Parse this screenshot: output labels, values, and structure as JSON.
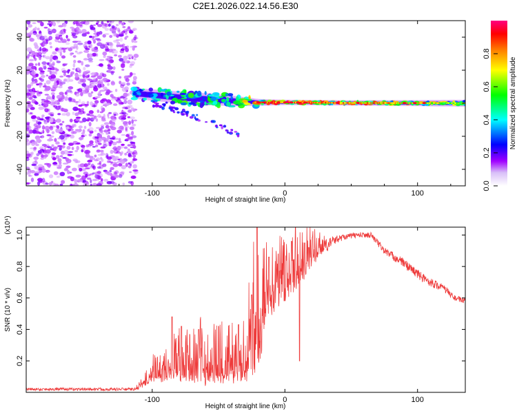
{
  "title": "C2E1.2026.022.14.56.E30",
  "chart_data": [
    {
      "type": "heatmap",
      "name": "spectrogram",
      "xlabel": "Height of straight line (km)",
      "ylabel": "Frequency (Hz)",
      "xlim": [
        -195,
        136
      ],
      "ylim": [
        -50,
        50
      ],
      "xticks": [
        -100,
        0,
        100
      ],
      "yticks": [
        -40,
        -20,
        0,
        20,
        40
      ],
      "colorbar": {
        "label": "Normalized spectral amplitude",
        "range": [
          0,
          1
        ],
        "ticks": [
          "0.0",
          "0.2",
          "0.4",
          "0.6",
          "0.8"
        ],
        "tick_values": [
          0.0,
          0.2,
          0.4,
          0.6,
          0.8
        ],
        "colors": [
          "#f2ecfb",
          "#a000ff",
          "#0000ff",
          "#00ffff",
          "#00ff00",
          "#ffff00",
          "#ff8000",
          "#ff0000",
          "#ff00a0"
        ]
      },
      "regions": {
        "noise_x": [
          -195,
          -112
        ],
        "noise_freq": [
          -50,
          50
        ],
        "trend": [
          {
            "x": -115,
            "freq": 6.0,
            "width": 6.0,
            "amp": 0.35
          },
          {
            "x": -100,
            "freq": 5.0,
            "width": 6.5,
            "amp": 0.4
          },
          {
            "x": -80,
            "freq": 3.5,
            "width": 7.0,
            "amp": 0.45
          },
          {
            "x": -60,
            "freq": 2.5,
            "width": 7.0,
            "amp": 0.45
          },
          {
            "x": -40,
            "freq": 1.5,
            "width": 6.0,
            "amp": 0.5
          },
          {
            "x": -20,
            "freq": 0.5,
            "width": 4.0,
            "amp": 0.7
          },
          {
            "x": 0,
            "freq": 0.5,
            "width": 3.0,
            "amp": 0.8
          },
          {
            "x": 50,
            "freq": 0.2,
            "width": 3.0,
            "amp": 0.75
          },
          {
            "x": 100,
            "freq": 0.1,
            "width": 3.5,
            "amp": 0.65
          },
          {
            "x": 136,
            "freq": 0.0,
            "width": 4.0,
            "amp": 0.55
          }
        ],
        "branch": [
          {
            "x": -100,
            "freq": 0
          },
          {
            "x": -75,
            "freq": -6
          },
          {
            "x": -55,
            "freq": -12
          },
          {
            "x": -35,
            "freq": -19
          }
        ]
      }
    },
    {
      "type": "line",
      "name": "snr",
      "xlabel": "Height of straight line (km)",
      "ylabel": "SNR (10 * v/v)",
      "yexponent": "(x10⁴)",
      "xlim": [
        -195,
        136
      ],
      "ylim": [
        0,
        1.05
      ],
      "xticks": [
        -100,
        0,
        100
      ],
      "yticks": [
        0.2,
        0.4,
        0.6,
        0.8,
        1.0
      ],
      "ytick_labels": [
        "0.2",
        "0.4",
        "0.6",
        "0.8",
        "1.0"
      ],
      "color": "#ee3b3b",
      "envelope": [
        {
          "x": -195,
          "base": 0.02,
          "amp": 0.02
        },
        {
          "x": -112,
          "base": 0.02,
          "amp": 0.02
        },
        {
          "x": -105,
          "base": 0.05,
          "amp": 0.05
        },
        {
          "x": -100,
          "base": 0.1,
          "amp": 0.1
        },
        {
          "x": -90,
          "base": 0.1,
          "amp": 0.12
        },
        {
          "x": -80,
          "base": 0.14,
          "amp": 0.22
        },
        {
          "x": -70,
          "base": 0.12,
          "amp": 0.22
        },
        {
          "x": -60,
          "base": 0.12,
          "amp": 0.24
        },
        {
          "x": -50,
          "base": 0.12,
          "amp": 0.24
        },
        {
          "x": -40,
          "base": 0.12,
          "amp": 0.22
        },
        {
          "x": -30,
          "base": 0.14,
          "amp": 0.25
        },
        {
          "x": -22,
          "base": 0.3,
          "amp": 0.5
        },
        {
          "x": -18,
          "base": 0.3,
          "amp": 0.55
        },
        {
          "x": -15,
          "base": 0.55,
          "amp": 0.3
        },
        {
          "x": -5,
          "base": 0.62,
          "amp": 0.25
        },
        {
          "x": 5,
          "base": 0.7,
          "amp": 0.25
        },
        {
          "x": 15,
          "base": 0.78,
          "amp": 0.2
        },
        {
          "x": 25,
          "base": 0.88,
          "amp": 0.12
        },
        {
          "x": 35,
          "base": 0.96,
          "amp": 0.05
        },
        {
          "x": 45,
          "base": 0.99,
          "amp": 0.03
        },
        {
          "x": 55,
          "base": 1.0,
          "amp": 0.03
        },
        {
          "x": 65,
          "base": 1.0,
          "amp": 0.03
        },
        {
          "x": 75,
          "base": 0.9,
          "amp": 0.04
        },
        {
          "x": 90,
          "base": 0.82,
          "amp": 0.05
        },
        {
          "x": 105,
          "base": 0.72,
          "amp": 0.05
        },
        {
          "x": 120,
          "base": 0.66,
          "amp": 0.04
        },
        {
          "x": 128,
          "base": 0.6,
          "amp": 0.03
        },
        {
          "x": 136,
          "base": 0.58,
          "amp": 0.03
        }
      ],
      "spikes": [
        {
          "x": -85,
          "y": 0.48
        },
        {
          "x": -78,
          "y": 0.42
        },
        {
          "x": -65,
          "y": 0.4
        },
        {
          "x": -50,
          "y": 0.42
        },
        {
          "x": -35,
          "y": 0.43
        },
        {
          "x": -25,
          "y": 0.62
        },
        {
          "x": -21,
          "y": 1.05
        },
        {
          "x": -12,
          "y": 0.86
        },
        {
          "x": -5,
          "y": 0.88
        },
        {
          "x": 5,
          "y": 0.96
        },
        {
          "x": 8,
          "y": 1.05
        },
        {
          "x": 11,
          "y": 0.2
        },
        {
          "x": 15,
          "y": 0.95
        },
        {
          "x": 18,
          "y": 0.92
        }
      ]
    }
  ]
}
